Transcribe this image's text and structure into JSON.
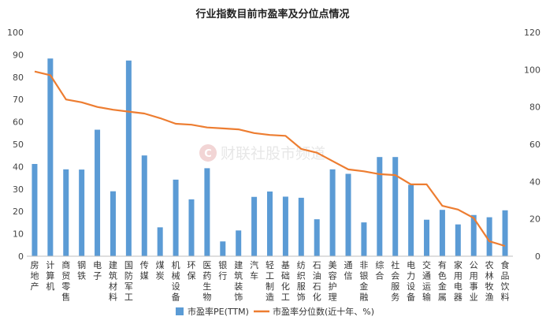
{
  "chart_data": {
    "type": "bar",
    "title": "行业指数目前市盈率及分位点情况",
    "categories": [
      "房地产",
      "计算机",
      "商贸零售",
      "钢铁",
      "电子",
      "建筑材料",
      "国防军工",
      "传媒",
      "煤炭",
      "机械设备",
      "环保",
      "医药生物",
      "银行",
      "建筑装饰",
      "汽车",
      "轻工制造",
      "基础化工",
      "纺织服饰",
      "石油石化",
      "美容护理",
      "通信",
      "非银金融",
      "综合",
      "社会服务",
      "电力设备",
      "交通运输",
      "有色金属",
      "家用电器",
      "公用事业",
      "农林牧渔",
      "食品饮料"
    ],
    "series": [
      {
        "name": "市盈率PE(TTM)",
        "axis": "left",
        "type": "bar",
        "color": "#5b9bd5",
        "values": [
          41.2,
          88.3,
          38.8,
          38.7,
          56.5,
          29.0,
          87.4,
          45.0,
          12.9,
          34.2,
          25.4,
          39.3,
          6.6,
          11.5,
          26.5,
          28.9,
          26.6,
          26.1,
          16.5,
          38.8,
          36.8,
          15.1,
          44.3,
          44.3,
          31.9,
          16.3,
          20.7,
          14.2,
          18.4,
          17.4,
          20.5
        ]
      },
      {
        "name": "市盈率分位数(近十年、%)",
        "axis": "right",
        "type": "line",
        "color": "#ed7d31",
        "values": [
          99,
          97,
          84,
          82.5,
          80,
          78.5,
          77.5,
          76.5,
          74,
          71,
          70.5,
          69,
          68.5,
          68,
          66,
          65,
          64.5,
          57.5,
          55.5,
          51,
          46.5,
          45.5,
          44,
          43.5,
          38.5,
          38.5,
          27,
          25,
          20.5,
          8,
          5.5
        ]
      }
    ],
    "left_axis": {
      "min": 0,
      "max": 100,
      "ticks": [
        0,
        10,
        20,
        30,
        40,
        50,
        60,
        70,
        80,
        90,
        100
      ]
    },
    "right_axis": {
      "min": 0,
      "max": 120,
      "ticks": [
        0,
        20,
        40,
        60,
        80,
        100,
        120
      ]
    },
    "grid": false,
    "legend_position": "bottom"
  },
  "watermark": "财联社股市频道"
}
